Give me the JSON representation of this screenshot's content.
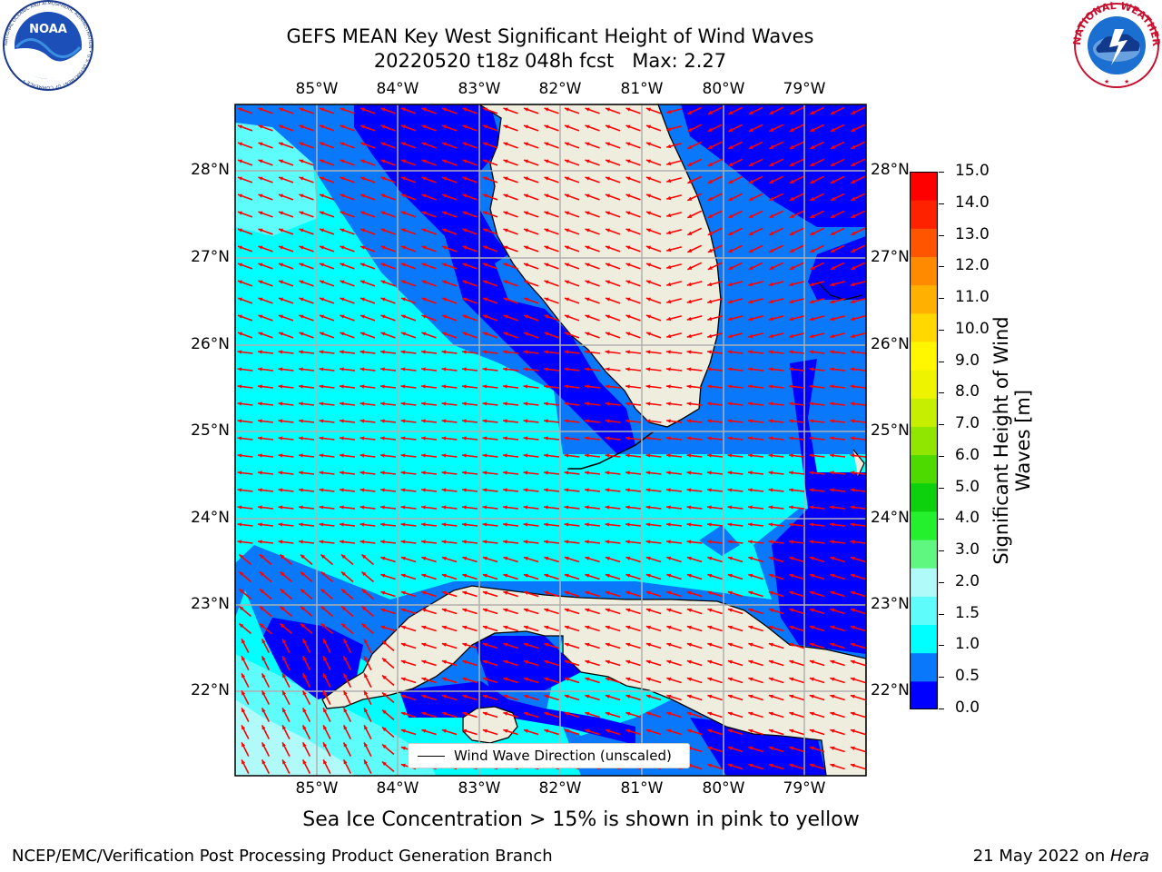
{
  "title": {
    "line1": "GEFS MEAN Key West Significant Height of Wind Waves",
    "line2": "20220520 t18z 048h fcst   Max: 2.27"
  },
  "map": {
    "lon_ticks": [
      "85°W",
      "84°W",
      "83°W",
      "82°W",
      "81°W",
      "80°W",
      "79°W"
    ],
    "lat_ticks": [
      "28°N",
      "27°N",
      "26°N",
      "25°N",
      "24°N",
      "23°N",
      "22°N"
    ],
    "colors": {
      "land": "#efedde",
      "coast": "#000000",
      "arrow": "#ff0000",
      "grid": "#b0b0b0"
    },
    "legend": "Wind Wave Direction (unscaled)"
  },
  "colorbar": {
    "label": "Significant Height of Wind Waves [m]",
    "ticks": [
      "15.0",
      "14.0",
      "13.0",
      "12.0",
      "11.0",
      "10.0",
      "9.0",
      "8.0",
      "7.0",
      "6.0",
      "5.0",
      "4.0",
      "3.0",
      "2.0",
      "1.5",
      "1.0",
      "0.5",
      "0.0"
    ],
    "colors": [
      "#0000ff",
      "#0a78fa",
      "#00ffff",
      "#5ffcfc",
      "#b0fafa",
      "#5ff77f",
      "#24f02d",
      "#0cd10c",
      "#4cda00",
      "#90e600",
      "#c6ee00",
      "#eef300",
      "#fff700",
      "#ffd800",
      "#ffb000",
      "#ff8a00",
      "#ff5500",
      "#ff2200",
      "#ff0000"
    ]
  },
  "caption": "Sea Ice Concentration > 15% is shown in pink to yellow",
  "footer": {
    "left": "NCEP/EMC/Verification Post Processing Product Generation Branch",
    "right_prefix": "21 May 2022 on ",
    "right_host": "Hera"
  },
  "logos": {
    "noaa": "NOAA",
    "noaa_ring": "NATIONAL OCEANIC AND ATMOSPHERIC ADMINISTRATION • U.S. DEPARTMENT OF COMMERCE •",
    "nws_ring": "NATIONAL WEATHER SERVICE"
  }
}
